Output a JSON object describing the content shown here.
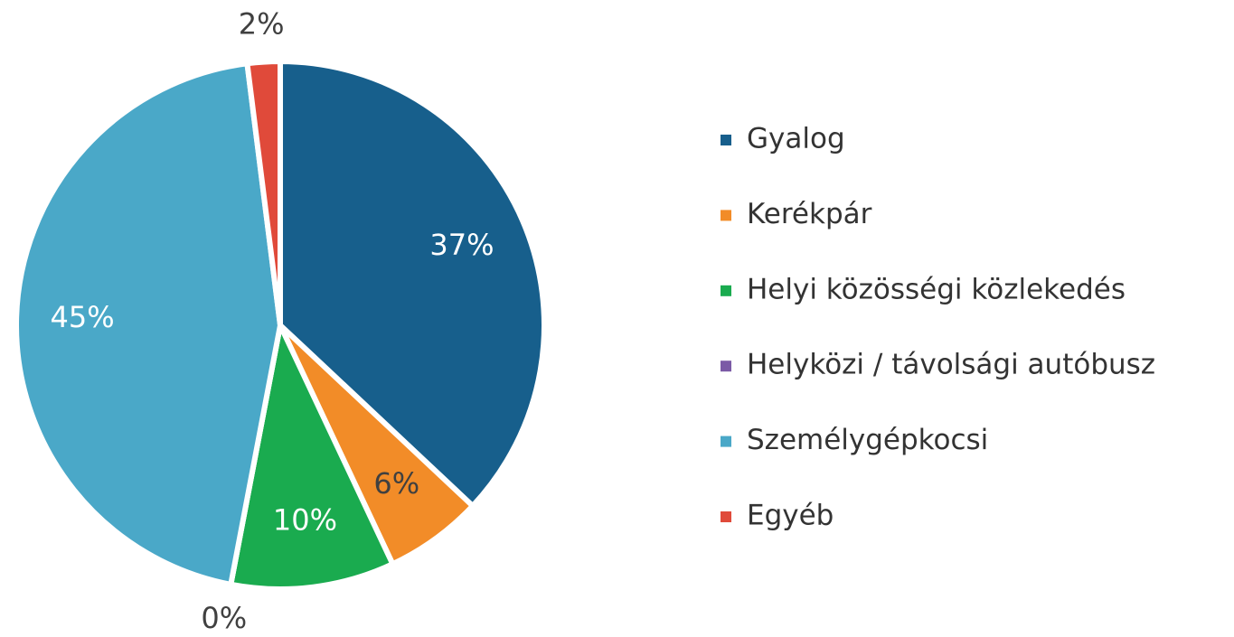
{
  "chart_data": {
    "type": "pie",
    "categories": [
      "Gyalog",
      "Kerékpár",
      "Helyi közösségi közlekedés",
      "Helyközi / távolsági autóbusz",
      "Személygépkocsi",
      "Egyéb"
    ],
    "values": [
      37,
      6,
      10,
      0,
      45,
      2
    ],
    "value_labels": [
      "37%",
      "6%",
      "10%",
      "0%",
      "45%",
      "2%"
    ],
    "colors": [
      "#175f8c",
      "#f28c28",
      "#1aab4f",
      "#7b5aa6",
      "#4aa8c8",
      "#e04a3a"
    ],
    "legend": "right"
  }
}
